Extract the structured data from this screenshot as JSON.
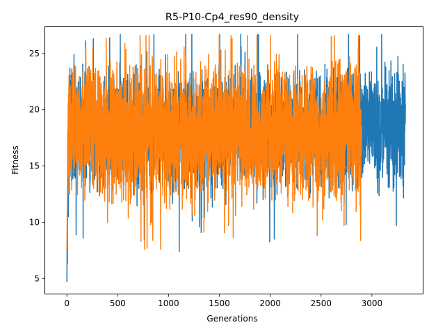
{
  "chart_data": {
    "type": "line",
    "title": "R5-P10-Cp4_res90_density",
    "xlabel": "Generations",
    "ylabel": "Fitness",
    "xlim": [
      -220,
      3500
    ],
    "ylim": [
      3.6,
      27.4
    ],
    "xticks": [
      0,
      500,
      1000,
      1500,
      2000,
      2500,
      3000
    ],
    "yticks": [
      5,
      10,
      15,
      20,
      25
    ],
    "grid": false,
    "legend": "none",
    "series": [
      {
        "color": "#1f77b4",
        "n_points": 3330,
        "summary": {
          "mean": 18.2,
          "typical_low": 14.8,
          "typical_high": 21.8,
          "min": 4.7,
          "max": 26.7
        },
        "key_points": [
          {
            "x": 0,
            "y": 4.7
          },
          {
            "x": 5,
            "y": 6.3
          },
          {
            "x": 15,
            "y": 10.5
          },
          {
            "x": 30,
            "y": 23.7
          },
          {
            "x": 70,
            "y": 24.9
          },
          {
            "x": 160,
            "y": 8.6
          },
          {
            "x": 260,
            "y": 26.3
          },
          {
            "x": 560,
            "y": 13.3
          },
          {
            "x": 830,
            "y": 10.0
          },
          {
            "x": 1105,
            "y": 7.4
          },
          {
            "x": 1500,
            "y": 25.8
          },
          {
            "x": 2040,
            "y": 8.5
          },
          {
            "x": 2270,
            "y": 26.7
          },
          {
            "x": 2880,
            "y": 26.6
          },
          {
            "x": 3055,
            "y": 12.6
          },
          {
            "x": 3240,
            "y": 9.7
          },
          {
            "x": 3330,
            "y": 20.8
          }
        ]
      },
      {
        "color": "#ff7f0e",
        "n_points": 2900,
        "summary": {
          "mean": 18.0,
          "typical_low": 14.2,
          "typical_high": 22.3,
          "min": 7.6,
          "max": 26.6
        },
        "key_points": [
          {
            "x": 0,
            "y": 7.6
          },
          {
            "x": 20,
            "y": 12.5
          },
          {
            "x": 255,
            "y": 25.4
          },
          {
            "x": 400,
            "y": 10.0
          },
          {
            "x": 570,
            "y": 25.9
          },
          {
            "x": 845,
            "y": 8.4
          },
          {
            "x": 1590,
            "y": 9.7
          },
          {
            "x": 1625,
            "y": 26.3
          },
          {
            "x": 2515,
            "y": 10.2
          },
          {
            "x": 2600,
            "y": 26.5
          },
          {
            "x": 2900,
            "y": 18.0
          }
        ]
      }
    ]
  }
}
